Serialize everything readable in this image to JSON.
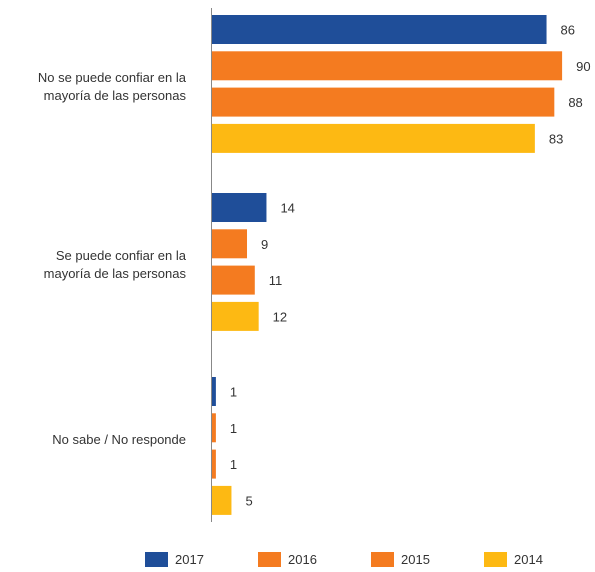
{
  "chart_data": {
    "type": "bar",
    "orientation": "horizontal",
    "categories": [
      "No se puede confiar en la mayoría de las personas",
      "Se puede confiar en la mayoría de las personas",
      "No sabe / No responde"
    ],
    "series": [
      {
        "name": "2017",
        "color": "#1f4e99",
        "values": [
          86,
          14,
          1
        ]
      },
      {
        "name": "2016",
        "color": "#f47b20",
        "values": [
          90,
          9,
          1
        ]
      },
      {
        "name": "2015",
        "color": "#f47b20",
        "values": [
          88,
          11,
          1
        ]
      },
      {
        "name": "2014",
        "color": "#fdb913",
        "values": [
          83,
          12,
          5
        ]
      }
    ],
    "xlim": [
      0,
      100
    ],
    "grid": false,
    "data_labels": true,
    "legend_position": "bottom"
  }
}
